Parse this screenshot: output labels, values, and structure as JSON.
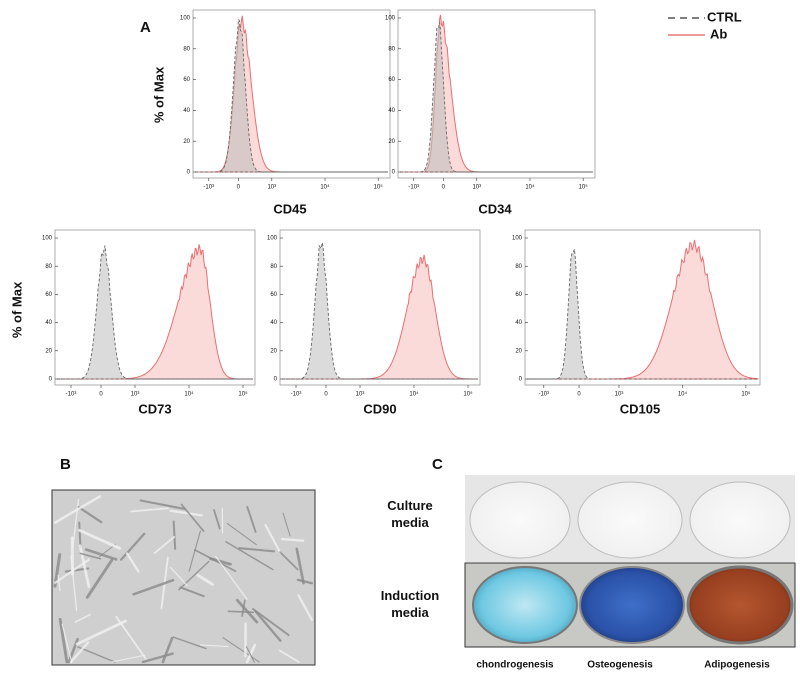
{
  "panel_a": {
    "label": "A",
    "legend": [
      "CTRL",
      "Ab"
    ],
    "y_axis_label": "% of Max",
    "y_ticks": [
      100,
      80,
      60,
      40,
      20,
      0
    ],
    "x_ticks": [
      "-10³",
      "0",
      "10³",
      "10⁴",
      "10⁵"
    ],
    "plots": [
      {
        "title": "CD45"
      },
      {
        "title": "CD34"
      },
      {
        "title": "CD73"
      },
      {
        "title": "CD90"
      },
      {
        "title": "CD105"
      }
    ]
  },
  "panel_b": {
    "label": "B"
  },
  "panel_c": {
    "label": "C",
    "rows": [
      "Culture media",
      "Induction media"
    ],
    "columns": [
      "chondrogenesis",
      "Osteogenesis",
      "Adipogenesis"
    ]
  }
}
